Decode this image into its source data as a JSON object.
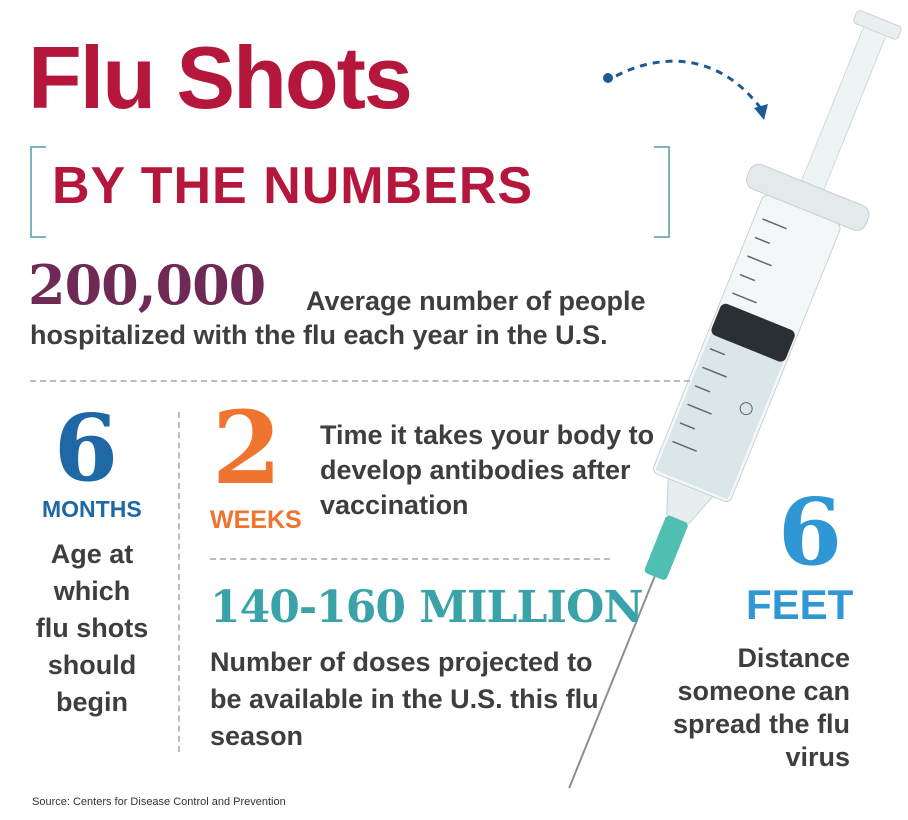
{
  "header": {
    "title": "Flu Shots",
    "subtitle": "BY THE NUMBERS"
  },
  "stats": {
    "hospitalized": {
      "number": "200,000",
      "line1": "Average number of people",
      "line2": "hospitalized with the flu each year in the U.S."
    },
    "age": {
      "number": "6",
      "unit": "MONTHS",
      "description": "Age at which flu shots should begin"
    },
    "antibodies": {
      "number": "2",
      "unit": "WEEKS",
      "description": "Time it takes your body to develop antibodies after vaccination"
    },
    "doses": {
      "number": "140-160 MILLION",
      "description": "Number of doses projected to be available in the U.S. this flu season"
    },
    "distance": {
      "number": "6",
      "unit": "FEET",
      "description": "Distance someone can spread the flu virus"
    }
  },
  "footer": {
    "source": "Source: Centers for Disease Control and Prevention"
  },
  "colors": {
    "title": "#b5163b",
    "hospitalized": "#6e2a55",
    "months": "#1e68a6",
    "weeks": "#ee7430",
    "million": "#3aa3a9",
    "feet": "#2f97d4",
    "body_text": "#3e3e3e"
  },
  "icons": [
    "syringe-illustration",
    "dashed-arrow-icon"
  ]
}
